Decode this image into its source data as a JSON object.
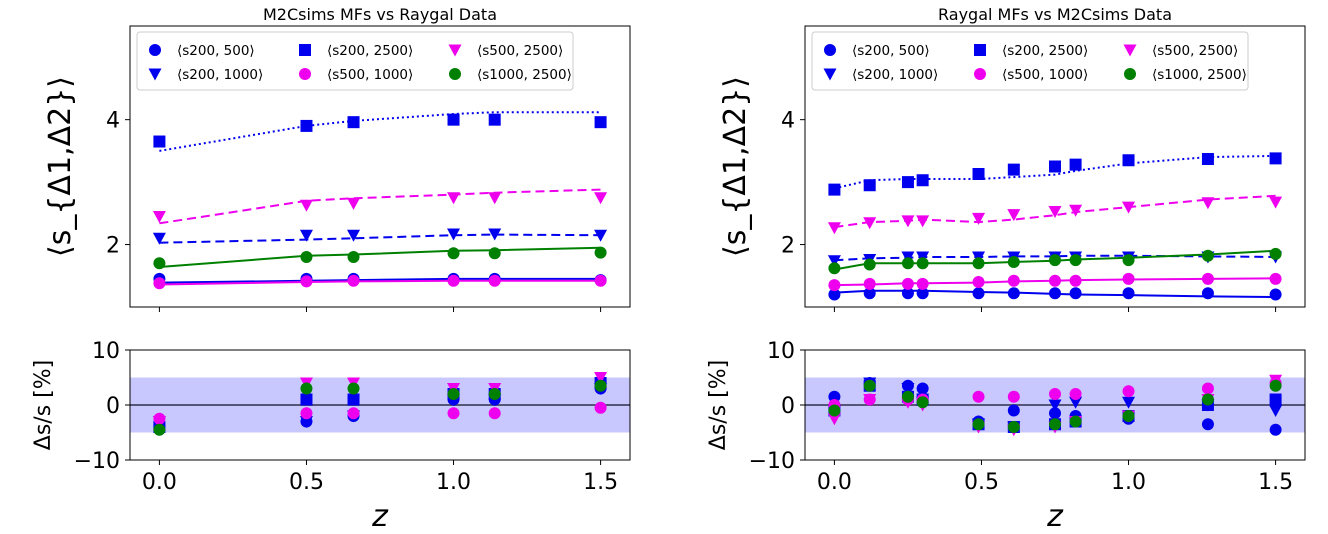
{
  "panels": [
    {
      "title": "M2Csims MFs vs Raygal Data",
      "ylabel_main": "⟨s_{Δ1,Δ2}⟩",
      "ylabel_resid": "Δs/s [%]",
      "xlabel": "z",
      "main_yticks": [
        "2",
        "4"
      ],
      "resid_yticks": [
        "10",
        "0",
        "−10"
      ],
      "xticks": [
        "0.0",
        "0.5",
        "1.0",
        "1.5"
      ],
      "legend": [
        "⟨s200, 500⟩",
        "⟨s200, 2500⟩",
        "⟨s500, 2500⟩",
        "⟨s200, 1000⟩",
        "⟨s500, 1000⟩",
        "⟨s1000, 2500⟩"
      ]
    },
    {
      "title": "Raygal MFs vs M2Csims Data",
      "ylabel_main": "⟨s_{Δ1,Δ2}⟩",
      "ylabel_resid": "Δs/s [%]",
      "xlabel": "z",
      "main_yticks": [
        "2",
        "4"
      ],
      "resid_yticks": [
        "10",
        "0",
        "−10"
      ],
      "xticks": [
        "0.0",
        "0.5",
        "1.0",
        "1.5"
      ],
      "legend": [
        "⟨s200, 500⟩",
        "⟨s200, 2500⟩",
        "⟨s500, 2500⟩",
        "⟨s200, 1000⟩",
        "⟨s500, 1000⟩",
        "⟨s1000, 2500⟩"
      ]
    }
  ],
  "chart_data": [
    {
      "type": "scatter",
      "title": "M2Csims MFs vs Raygal Data",
      "xlabel": "z",
      "ylabel": "⟨s_{Δ1,Δ2}⟩",
      "xlim": [
        -0.1,
        1.6
      ],
      "ylim_main": [
        1.0,
        5.5
      ],
      "ylim_resid": [
        -10,
        10
      ],
      "resid_band": [
        -5,
        5
      ],
      "x": [
        0.0,
        0.5,
        0.66,
        1.0,
        1.14,
        1.5
      ],
      "series": [
        {
          "name": "⟨s200, 500⟩",
          "color": "#0000ee",
          "marker": "circle",
          "data": [
            1.45,
            1.45,
            1.45,
            1.45,
            1.45,
            1.43
          ],
          "model": [
            1.39,
            1.42,
            1.43,
            1.45,
            1.45,
            1.45
          ],
          "line": "solid",
          "resid": [
            -4,
            -3,
            -2,
            1,
            1,
            3
          ]
        },
        {
          "name": "⟨s200, 1000⟩",
          "color": "#0000ee",
          "marker": "triangle-down",
          "data": [
            2.1,
            2.15,
            2.15,
            2.17,
            2.17,
            2.15
          ],
          "model": [
            2.03,
            2.08,
            2.1,
            2.15,
            2.16,
            2.15
          ],
          "line": "dashed",
          "resid": [
            -3,
            -3,
            -2,
            1,
            1,
            3
          ]
        },
        {
          "name": "⟨s200, 2500⟩",
          "color": "#0000ee",
          "marker": "square",
          "data": [
            3.65,
            3.9,
            3.96,
            4.0,
            4.0,
            3.96
          ],
          "model": [
            3.5,
            3.9,
            3.98,
            4.09,
            4.12,
            4.12
          ],
          "line": "dotted",
          "resid": [
            -4,
            1,
            1,
            2,
            2,
            4
          ]
        },
        {
          "name": "⟨s500, 1000⟩",
          "color": "#ee00ee",
          "marker": "circle",
          "data": [
            1.38,
            1.41,
            1.42,
            1.42,
            1.42,
            1.42
          ],
          "model": [
            1.36,
            1.4,
            1.41,
            1.42,
            1.42,
            1.42
          ],
          "line": "solid",
          "resid": [
            -2.5,
            -1.5,
            -1.5,
            -1.5,
            -1.5,
            -0.5
          ]
        },
        {
          "name": "⟨s500, 2500⟩",
          "color": "#ee00ee",
          "marker": "triangle-down",
          "data": [
            2.45,
            2.63,
            2.66,
            2.75,
            2.75,
            2.75
          ],
          "model": [
            2.34,
            2.7,
            2.74,
            2.8,
            2.83,
            2.88
          ],
          "line": "dashed",
          "resid": [
            -3,
            4,
            4,
            3,
            3,
            5
          ]
        },
        {
          "name": "⟨s1000, 2500⟩",
          "color": "#008000",
          "marker": "circle",
          "data": [
            1.7,
            1.8,
            1.8,
            1.86,
            1.86,
            1.87
          ],
          "model": [
            1.64,
            1.82,
            1.84,
            1.9,
            1.91,
            1.95
          ],
          "line": "solid",
          "resid": [
            -4.5,
            3,
            3,
            2,
            2,
            3.5
          ]
        }
      ]
    },
    {
      "type": "scatter",
      "title": "Raygal MFs vs M2Csims Data",
      "xlabel": "z",
      "ylabel": "⟨s_{Δ1,Δ2}⟩",
      "xlim": [
        -0.1,
        1.6
      ],
      "ylim_main": [
        1.0,
        5.5
      ],
      "ylim_resid": [
        -10,
        10
      ],
      "resid_band": [
        -5,
        5
      ],
      "x": [
        0.0,
        0.12,
        0.25,
        0.3,
        0.49,
        0.61,
        0.75,
        0.82,
        1.0,
        1.27,
        1.5
      ],
      "series": [
        {
          "name": "⟨s200, 500⟩",
          "color": "#0000ee",
          "marker": "circle",
          "data": [
            1.2,
            1.22,
            1.22,
            1.22,
            1.22,
            1.22,
            1.22,
            1.22,
            1.22,
            1.22,
            1.2
          ],
          "model": [
            1.23,
            1.26,
            1.26,
            1.26,
            1.24,
            1.23,
            1.21,
            1.2,
            1.19,
            1.17,
            1.16
          ],
          "line": "solid",
          "resid": [
            1.5,
            4,
            3.5,
            3,
            -3,
            -1,
            -1.5,
            -2,
            -2.5,
            -3.5,
            -4.5
          ]
        },
        {
          "name": "⟨s200, 1000⟩",
          "color": "#0000ee",
          "marker": "triangle-down",
          "data": [
            1.74,
            1.76,
            1.8,
            1.8,
            1.8,
            1.8,
            1.8,
            1.8,
            1.8,
            1.8,
            1.8
          ],
          "model": [
            1.75,
            1.78,
            1.79,
            1.8,
            1.8,
            1.81,
            1.81,
            1.82,
            1.82,
            1.81,
            1.8
          ],
          "line": "dashed",
          "resid": [
            -1,
            4,
            3,
            0.5,
            -3.5,
            -4,
            0,
            0.5,
            0.5,
            0,
            -1
          ]
        },
        {
          "name": "⟨s200, 2500⟩",
          "color": "#0000ee",
          "marker": "square",
          "data": [
            2.88,
            2.95,
            3.0,
            3.03,
            3.13,
            3.2,
            3.25,
            3.28,
            3.35,
            3.37,
            3.38
          ],
          "model": [
            2.9,
            3.03,
            3.05,
            3.05,
            3.05,
            3.08,
            3.12,
            3.18,
            3.3,
            3.4,
            3.42
          ],
          "line": "dotted",
          "resid": [
            -1,
            3.5,
            1.5,
            1,
            -3.5,
            -4,
            -3.5,
            -3,
            -2,
            0,
            1
          ]
        },
        {
          "name": "⟨s500, 1000⟩",
          "color": "#ee00ee",
          "marker": "circle",
          "data": [
            1.35,
            1.37,
            1.37,
            1.37,
            1.4,
            1.42,
            1.42,
            1.42,
            1.45,
            1.45,
            1.45
          ],
          "model": [
            1.35,
            1.36,
            1.38,
            1.38,
            1.39,
            1.41,
            1.42,
            1.43,
            1.44,
            1.45,
            1.46
          ],
          "line": "solid",
          "resid": [
            0,
            1,
            1,
            1,
            1.5,
            1.5,
            2,
            2,
            2.5,
            3,
            4
          ]
        },
        {
          "name": "⟨s500, 2500⟩",
          "color": "#ee00ee",
          "marker": "triangle-down",
          "data": [
            2.27,
            2.35,
            2.38,
            2.38,
            2.42,
            2.48,
            2.53,
            2.55,
            2.6,
            2.67,
            2.68
          ],
          "model": [
            2.28,
            2.36,
            2.38,
            2.4,
            2.36,
            2.4,
            2.47,
            2.52,
            2.6,
            2.72,
            2.78
          ],
          "line": "dashed",
          "resid": [
            -2.5,
            1,
            0.5,
            0,
            -4,
            -4.5,
            -4,
            -3,
            -2,
            1,
            4.5
          ]
        },
        {
          "name": "⟨s1000, 2500⟩",
          "color": "#008000",
          "marker": "circle",
          "data": [
            1.62,
            1.68,
            1.7,
            1.7,
            1.7,
            1.72,
            1.75,
            1.75,
            1.75,
            1.82,
            1.85
          ],
          "model": [
            1.6,
            1.7,
            1.7,
            1.7,
            1.7,
            1.72,
            1.74,
            1.76,
            1.79,
            1.84,
            1.9
          ],
          "line": "solid",
          "resid": [
            -1,
            3.5,
            1.5,
            0.5,
            -3.5,
            -4,
            -3.5,
            -3,
            -2,
            1,
            3.5
          ]
        }
      ]
    }
  ]
}
